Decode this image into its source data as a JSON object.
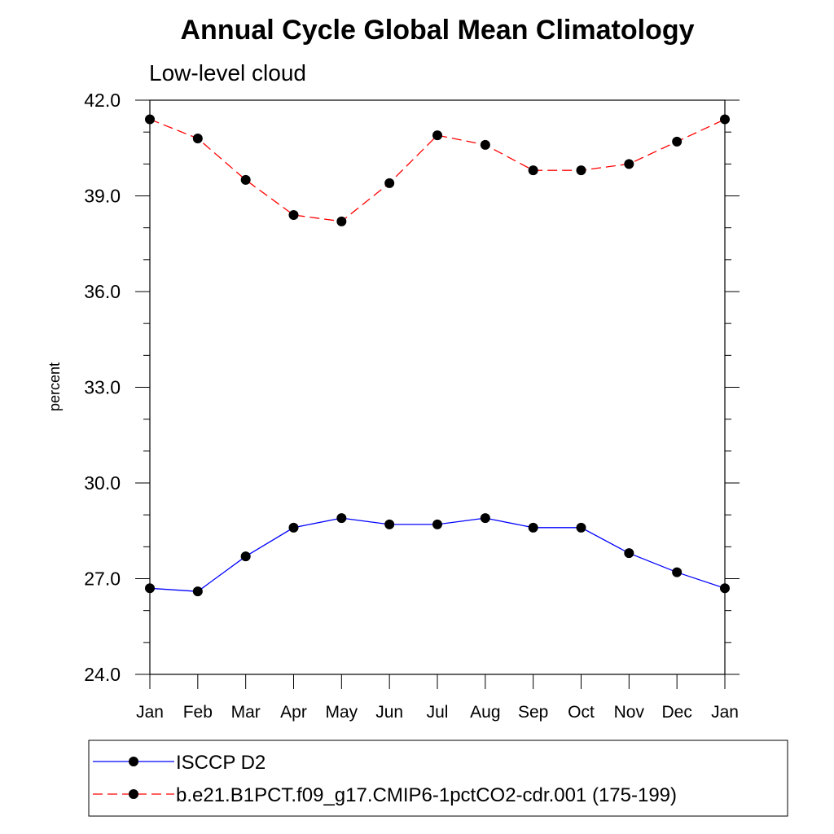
{
  "chart_data": {
    "type": "line",
    "title": "Annual Cycle Global Mean Climatology",
    "subtitle": "Low-level cloud",
    "xlabel": "",
    "ylabel": "percent",
    "categories": [
      "Jan",
      "Feb",
      "Mar",
      "Apr",
      "May",
      "Jun",
      "Jul",
      "Aug",
      "Sep",
      "Oct",
      "Nov",
      "Dec",
      "Jan"
    ],
    "ylim": [
      24.0,
      42.0
    ],
    "yticks": [
      "24.0",
      "27.0",
      "30.0",
      "33.0",
      "36.0",
      "39.0",
      "42.0"
    ],
    "grid": false,
    "legend_position": "bottom",
    "series": [
      {
        "name": "ISCCP D2",
        "color": "#0000ff",
        "line_style": "solid",
        "marker": "filled-circle",
        "values": [
          26.7,
          26.6,
          27.7,
          28.6,
          28.9,
          28.7,
          28.7,
          28.9,
          28.6,
          28.6,
          27.8,
          27.2,
          26.7
        ]
      },
      {
        "name": "b.e21.B1PCT.f09_g17.CMIP6-1pctCO2-cdr.001 (175-199)",
        "color": "#ff0000",
        "line_style": "dashed",
        "marker": "filled-circle",
        "values": [
          41.4,
          40.8,
          39.5,
          38.4,
          38.2,
          39.4,
          40.9,
          40.6,
          39.8,
          39.8,
          40.0,
          40.7,
          41.4
        ]
      }
    ]
  }
}
